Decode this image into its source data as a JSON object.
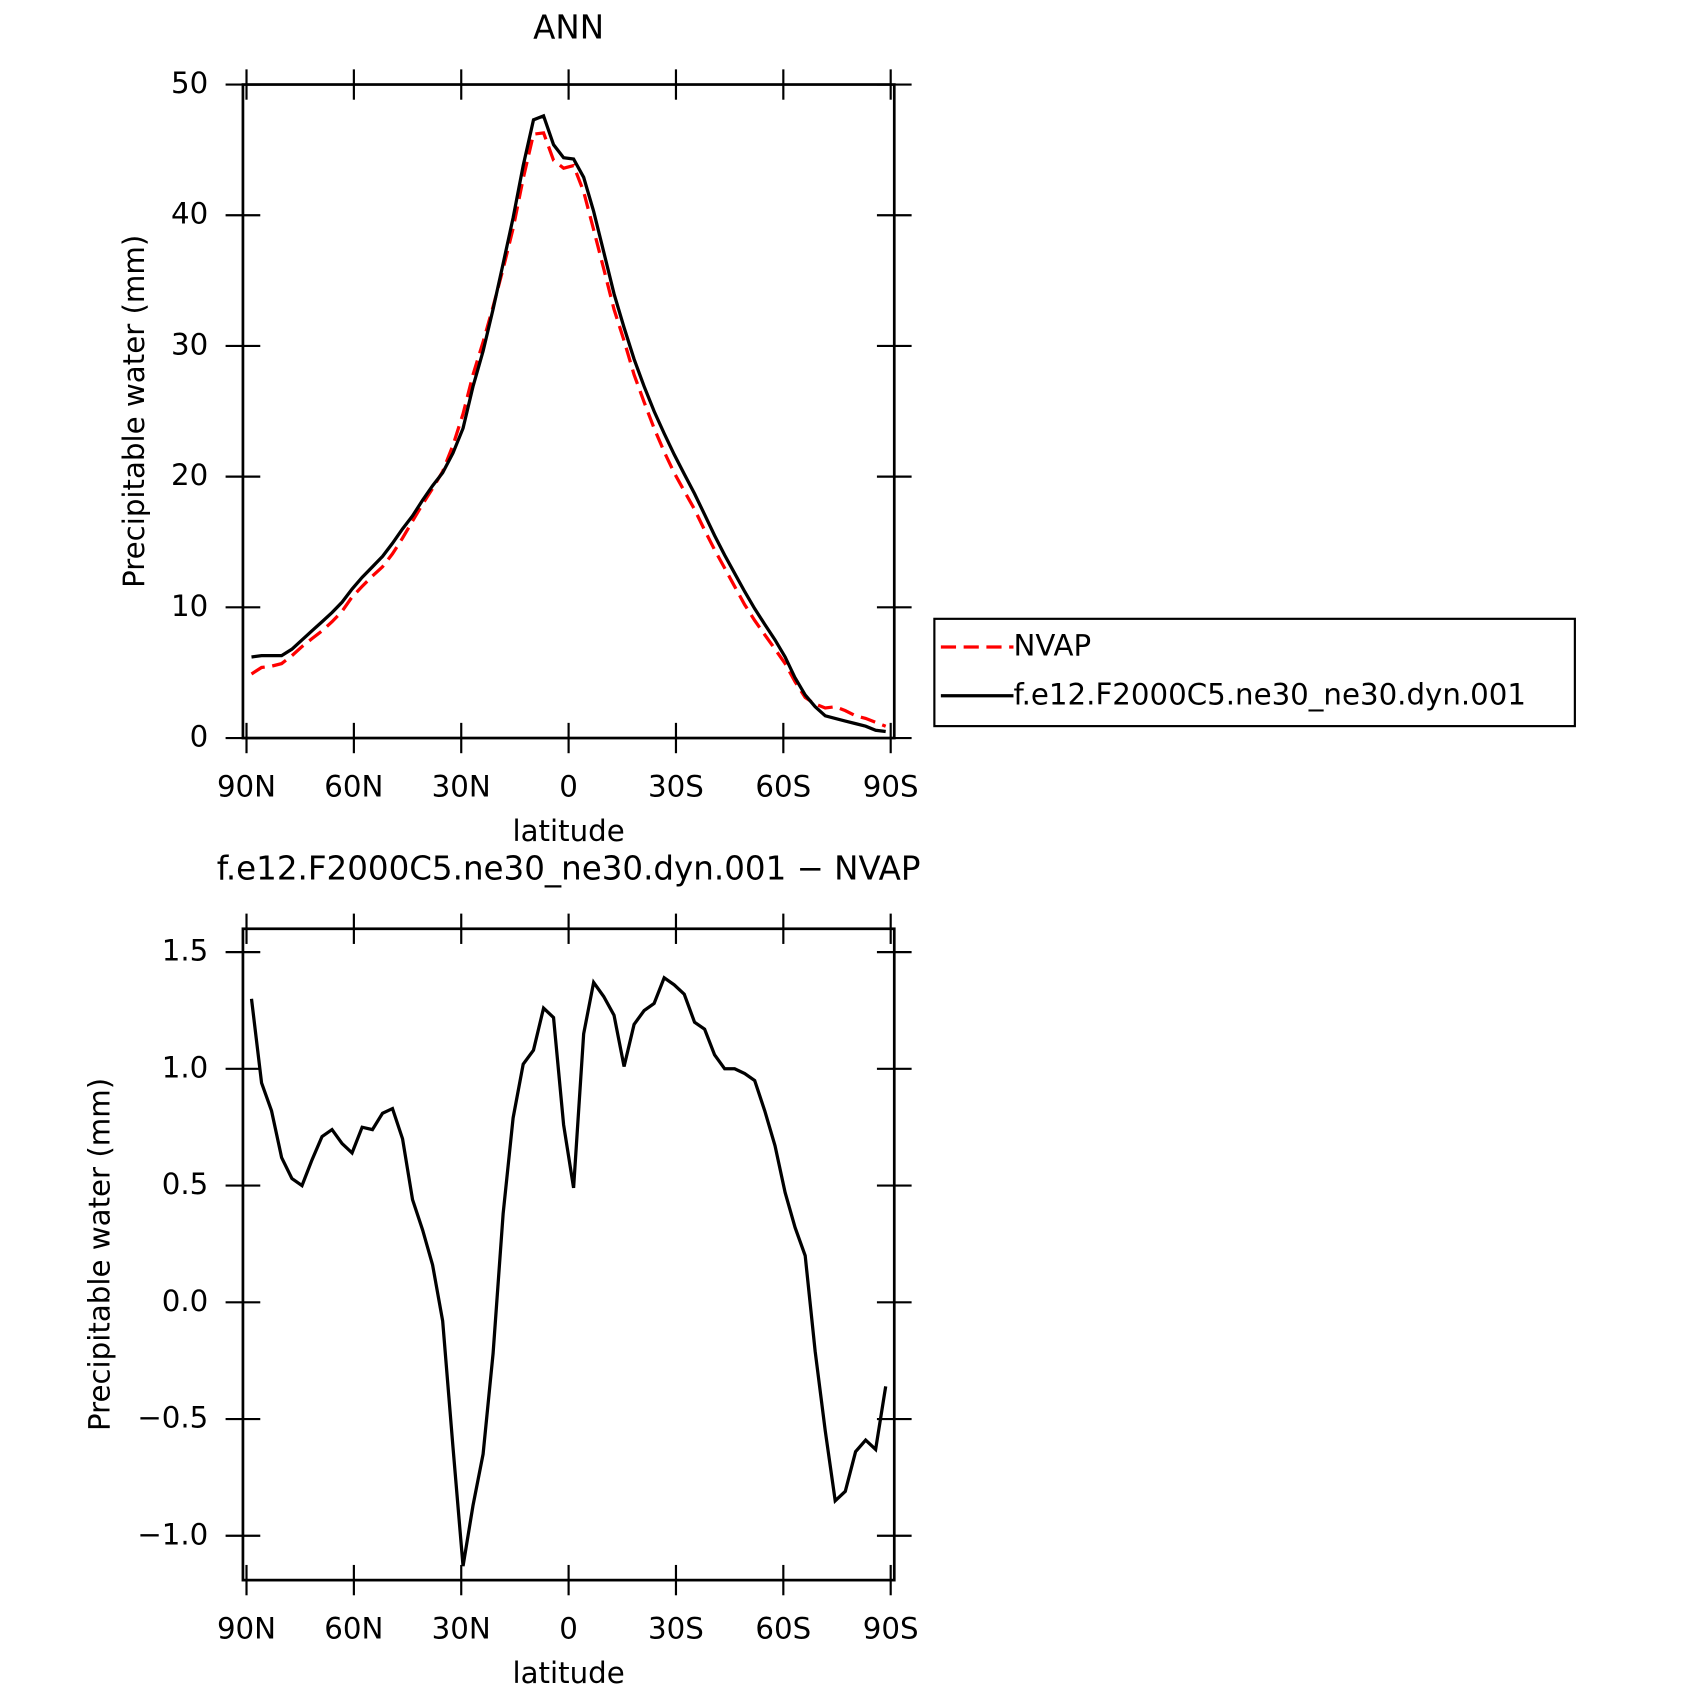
{
  "chart_data": [
    {
      "type": "line",
      "title": "ANN",
      "xlabel": "latitude",
      "ylabel": "Precipitable water (mm)",
      "x": [
        88.6,
        85.8,
        83.0,
        80.2,
        77.3,
        74.5,
        71.7,
        68.9,
        66.1,
        63.3,
        60.5,
        57.7,
        54.8,
        52.0,
        49.2,
        46.4,
        43.6,
        40.8,
        38.0,
        35.2,
        32.3,
        29.5,
        26.7,
        23.9,
        21.1,
        18.3,
        15.5,
        12.7,
        9.8,
        7.0,
        4.2,
        1.4,
        -1.4,
        -4.2,
        -7.0,
        -9.8,
        -12.7,
        -15.5,
        -18.3,
        -21.1,
        -23.9,
        -26.7,
        -29.5,
        -32.3,
        -35.2,
        -38.0,
        -40.8,
        -43.6,
        -46.4,
        -49.2,
        -52.0,
        -54.8,
        -57.7,
        -60.5,
        -63.3,
        -66.1,
        -68.9,
        -71.7,
        -74.5,
        -77.3,
        -80.2,
        -83.0,
        -85.8,
        -88.6
      ],
      "series": [
        {
          "name": "NVAP",
          "color": "#ff0000",
          "dashed": true,
          "values": [
            4.9,
            5.4,
            5.5,
            5.7,
            6.3,
            7.0,
            7.6,
            8.2,
            8.9,
            9.7,
            10.8,
            11.6,
            12.4,
            13.1,
            14.1,
            15.3,
            16.6,
            17.9,
            19.1,
            20.4,
            22.4,
            24.8,
            27.8,
            30.3,
            33.0,
            35.9,
            39.0,
            42.8,
            46.2,
            46.3,
            44.2,
            43.6,
            43.8,
            41.8,
            38.9,
            35.9,
            32.8,
            30.4,
            27.8,
            25.7,
            23.7,
            21.9,
            20.3,
            18.9,
            17.5,
            15.9,
            14.4,
            13.0,
            11.6,
            10.2,
            9.0,
            7.9,
            6.8,
            5.7,
            4.3,
            3.1,
            2.6,
            2.3,
            2.4,
            2.1,
            1.7,
            1.5,
            1.2,
            0.9
          ]
        },
        {
          "name": "f.e12.F2000C5.ne30_ne30.dyn.001",
          "color": "#000000",
          "dashed": false,
          "values": [
            6.2,
            6.3,
            6.3,
            6.3,
            6.8,
            7.5,
            8.2,
            8.9,
            9.6,
            10.4,
            11.4,
            12.3,
            13.1,
            13.9,
            14.9,
            16.0,
            17.0,
            18.2,
            19.3,
            20.3,
            21.8,
            23.7,
            26.9,
            29.6,
            32.8,
            36.3,
            39.8,
            43.8,
            47.3,
            47.6,
            45.4,
            44.4,
            44.3,
            42.9,
            40.3,
            37.2,
            34.0,
            31.4,
            29.0,
            26.9,
            25.0,
            23.3,
            21.7,
            20.2,
            18.7,
            17.1,
            15.5,
            14.0,
            12.6,
            11.2,
            9.9,
            8.7,
            7.5,
            6.2,
            4.6,
            3.3,
            2.4,
            1.7,
            1.5,
            1.3,
            1.1,
            0.9,
            0.6,
            0.5
          ]
        }
      ],
      "xlim": [
        91,
        -91
      ],
      "xticks": [
        {
          "value": 90,
          "label": "90N"
        },
        {
          "value": 60,
          "label": "60N"
        },
        {
          "value": 30,
          "label": "30N"
        },
        0,
        {
          "value": -30,
          "label": "30S"
        },
        {
          "value": -60,
          "label": "60S"
        },
        {
          "value": -90,
          "label": "90S"
        }
      ],
      "ylim": [
        0,
        50
      ],
      "yticks": [
        0,
        10,
        20,
        30,
        40,
        50
      ],
      "legend": "right"
    },
    {
      "type": "line",
      "title": "f.e12.F2000C5.ne30_ne30.dyn.001 − NVAP",
      "xlabel": "latitude",
      "ylabel": "Precipitable water (mm)",
      "x": [
        88.6,
        85.8,
        83.0,
        80.2,
        77.3,
        74.5,
        71.7,
        68.9,
        66.1,
        63.3,
        60.5,
        57.7,
        54.8,
        52.0,
        49.2,
        46.4,
        43.6,
        40.8,
        38.0,
        35.2,
        32.3,
        29.5,
        26.7,
        23.9,
        21.1,
        18.3,
        15.5,
        12.7,
        9.8,
        7.0,
        4.2,
        1.4,
        -1.4,
        -4.2,
        -7.0,
        -9.8,
        -12.7,
        -15.5,
        -18.3,
        -21.1,
        -23.9,
        -26.7,
        -29.5,
        -32.3,
        -35.2,
        -38.0,
        -40.8,
        -43.6,
        -46.4,
        -49.2,
        -52.0,
        -54.8,
        -57.7,
        -60.5,
        -63.3,
        -66.1,
        -68.9,
        -71.7,
        -74.5,
        -77.3,
        -80.2,
        -83.0,
        -85.8,
        -88.6
      ],
      "values": [
        1.3,
        0.94,
        0.82,
        0.62,
        0.53,
        0.5,
        0.61,
        0.71,
        0.74,
        0.68,
        0.64,
        0.75,
        0.74,
        0.81,
        0.83,
        0.7,
        0.44,
        0.31,
        0.16,
        -0.08,
        -0.62,
        -1.13,
        -0.87,
        -0.65,
        -0.22,
        0.38,
        0.79,
        1.02,
        1.08,
        1.26,
        1.22,
        0.76,
        0.49,
        1.15,
        1.37,
        1.31,
        1.23,
        1.01,
        1.19,
        1.25,
        1.28,
        1.39,
        1.36,
        1.32,
        1.2,
        1.17,
        1.06,
        1.0,
        1.0,
        0.98,
        0.95,
        0.82,
        0.67,
        0.47,
        0.32,
        0.2,
        -0.21,
        -0.55,
        -0.85,
        -0.81,
        -0.64,
        -0.59,
        -0.63,
        -0.36
      ],
      "color": "#000000",
      "xlim": [
        91,
        -91
      ],
      "xticks": [
        {
          "value": 90,
          "label": "90N"
        },
        {
          "value": 60,
          "label": "60N"
        },
        {
          "value": 30,
          "label": "30N"
        },
        0,
        {
          "value": -30,
          "label": "30S"
        },
        {
          "value": -60,
          "label": "60S"
        },
        {
          "value": -90,
          "label": "90S"
        }
      ],
      "ylim": [
        -1.19,
        1.6
      ],
      "yticks": [
        {
          "value": -1,
          "label": "−1.0"
        },
        {
          "value": -0.5,
          "label": "−0.5"
        },
        {
          "value": 0,
          "label": "0.0"
        },
        {
          "value": 0.5,
          "label": "0.5"
        },
        {
          "value": 1,
          "label": "1.0"
        },
        {
          "value": 1.5,
          "label": "1.5"
        }
      ]
    }
  ]
}
